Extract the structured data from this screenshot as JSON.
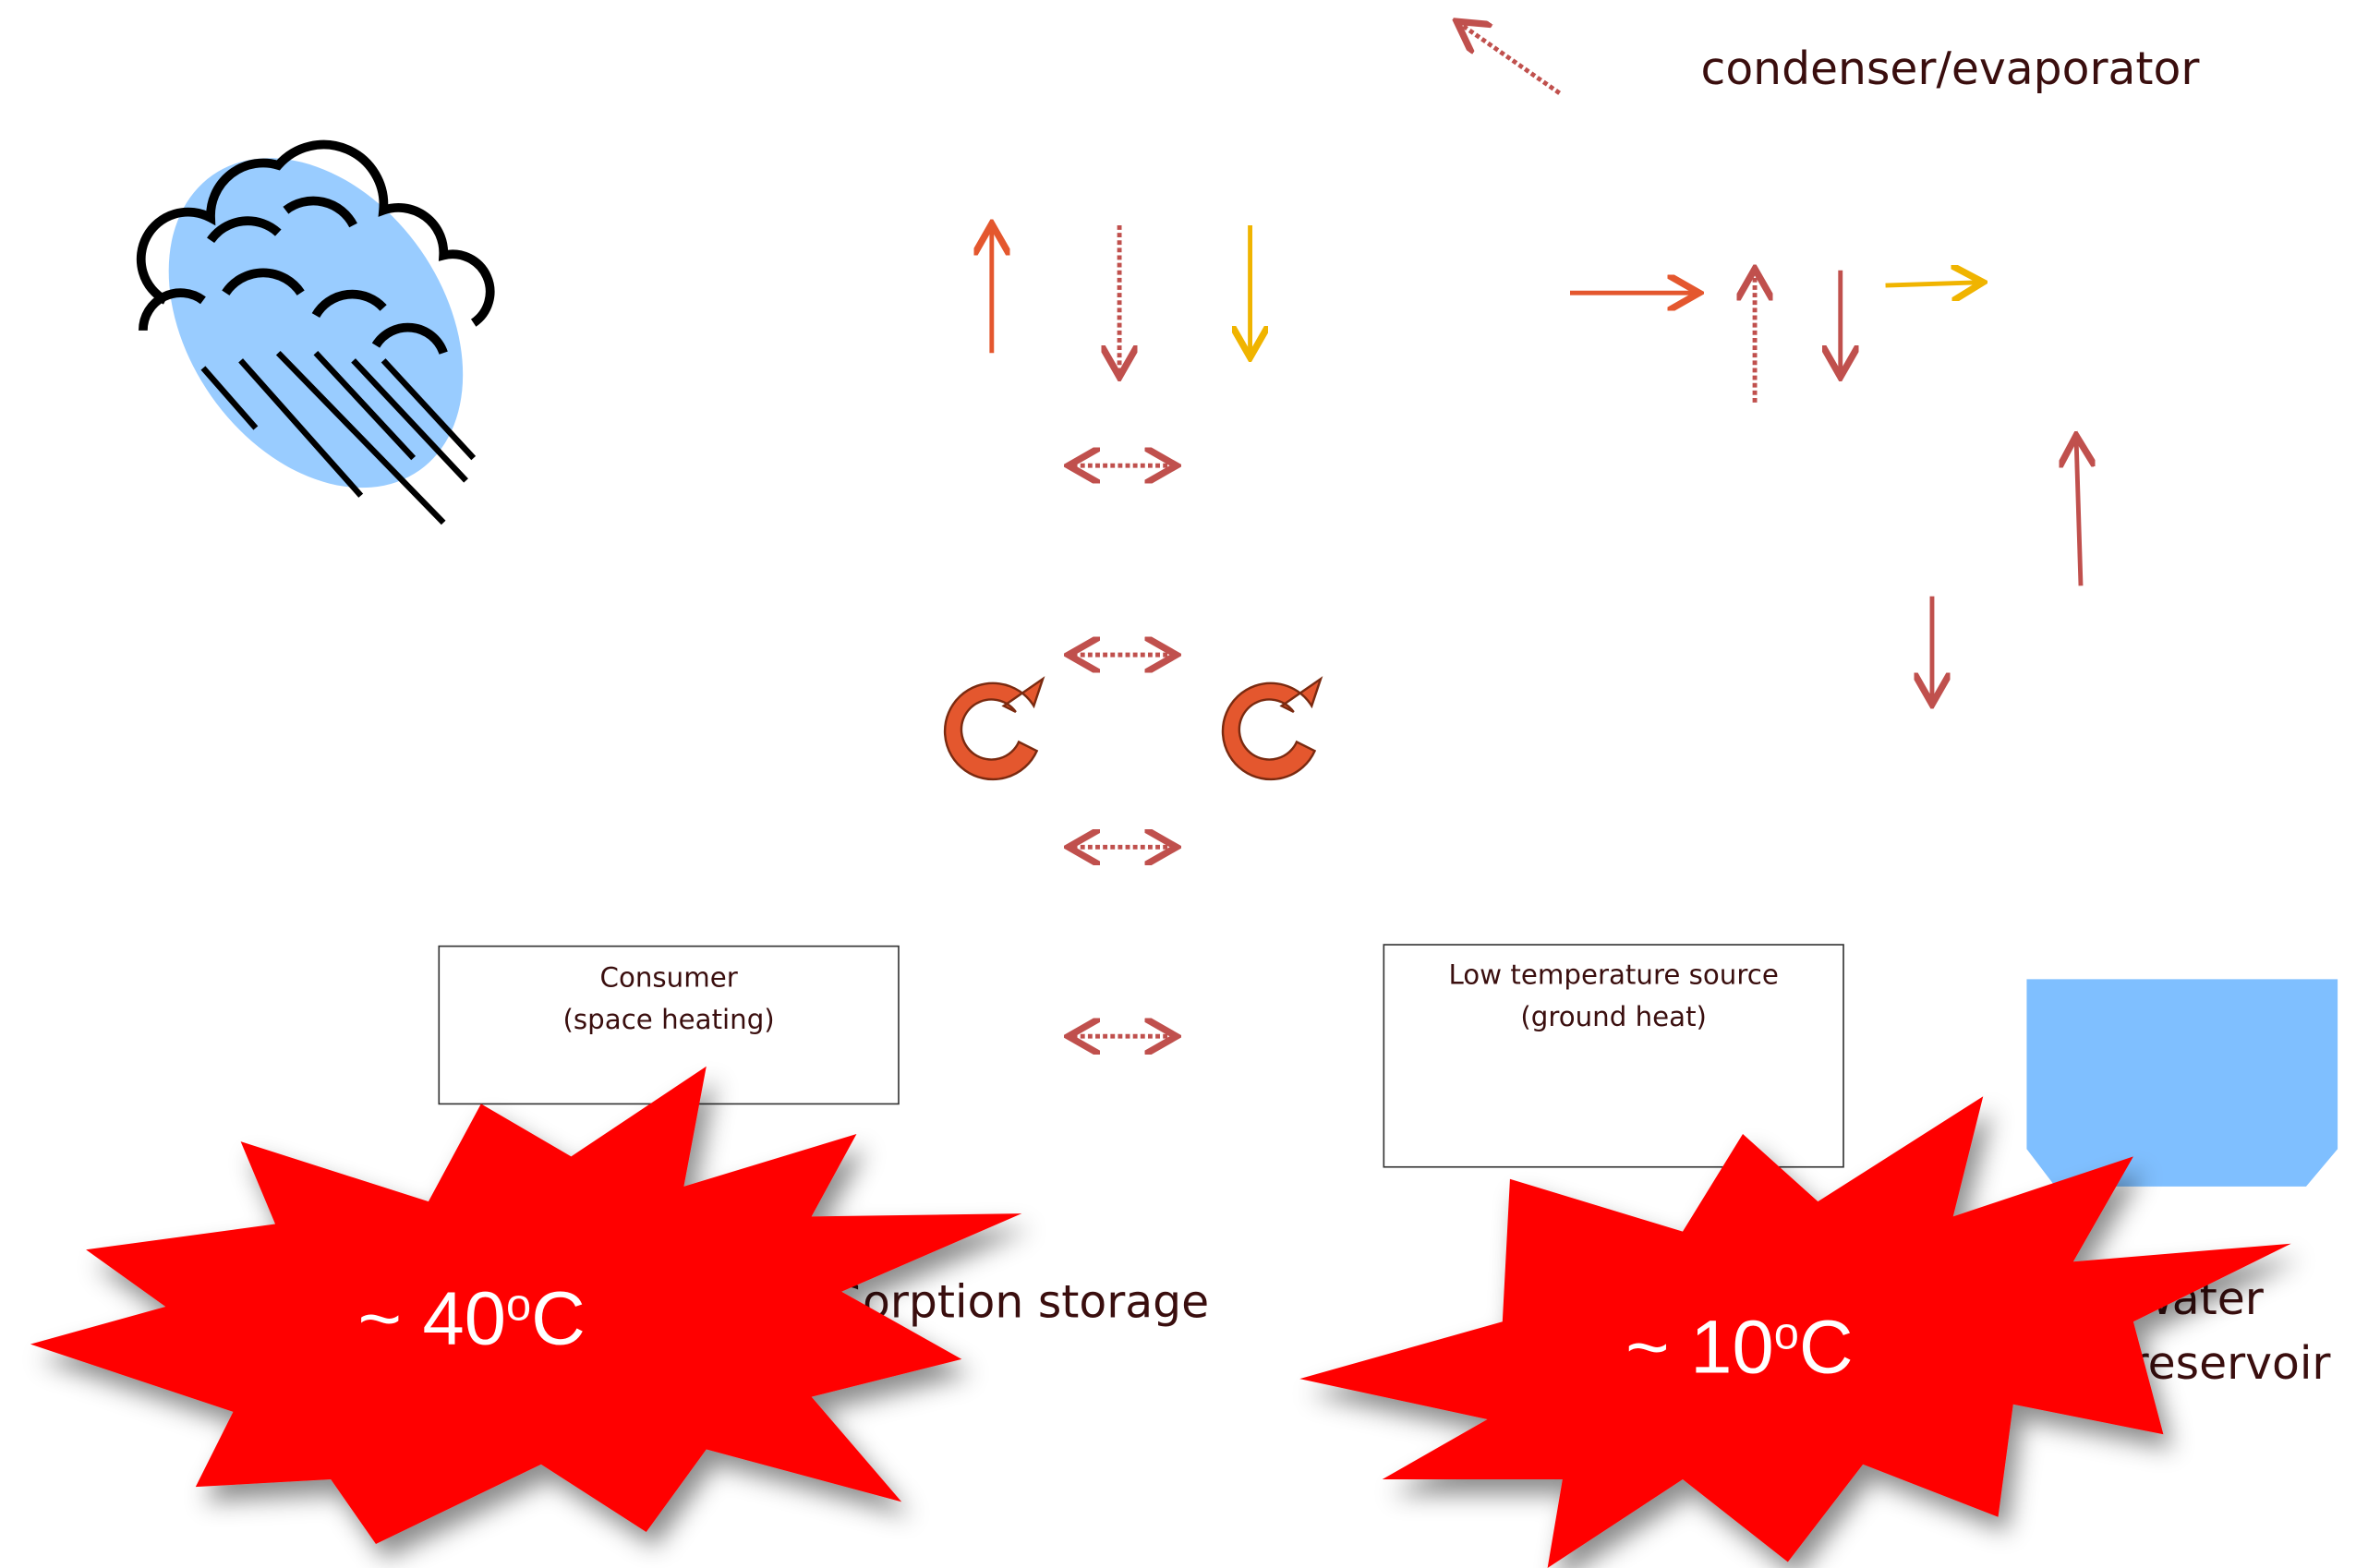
{
  "labels": {
    "condenser": "condenser/evaporator",
    "sorption": "Sorption storage",
    "water": [
      "Water",
      "reservoir"
    ]
  },
  "boxes": [
    {
      "title": "Consumer",
      "subtitle": "(space heating)"
    },
    {
      "title": "Low temperature source",
      "subtitle": "(ground heat)"
    }
  ],
  "temperatures": [
    {
      "text": "~ 40",
      "sup": "o",
      "unit": "C"
    },
    {
      "text": "~ 10",
      "sup": "o",
      "unit": "C"
    }
  ]
}
